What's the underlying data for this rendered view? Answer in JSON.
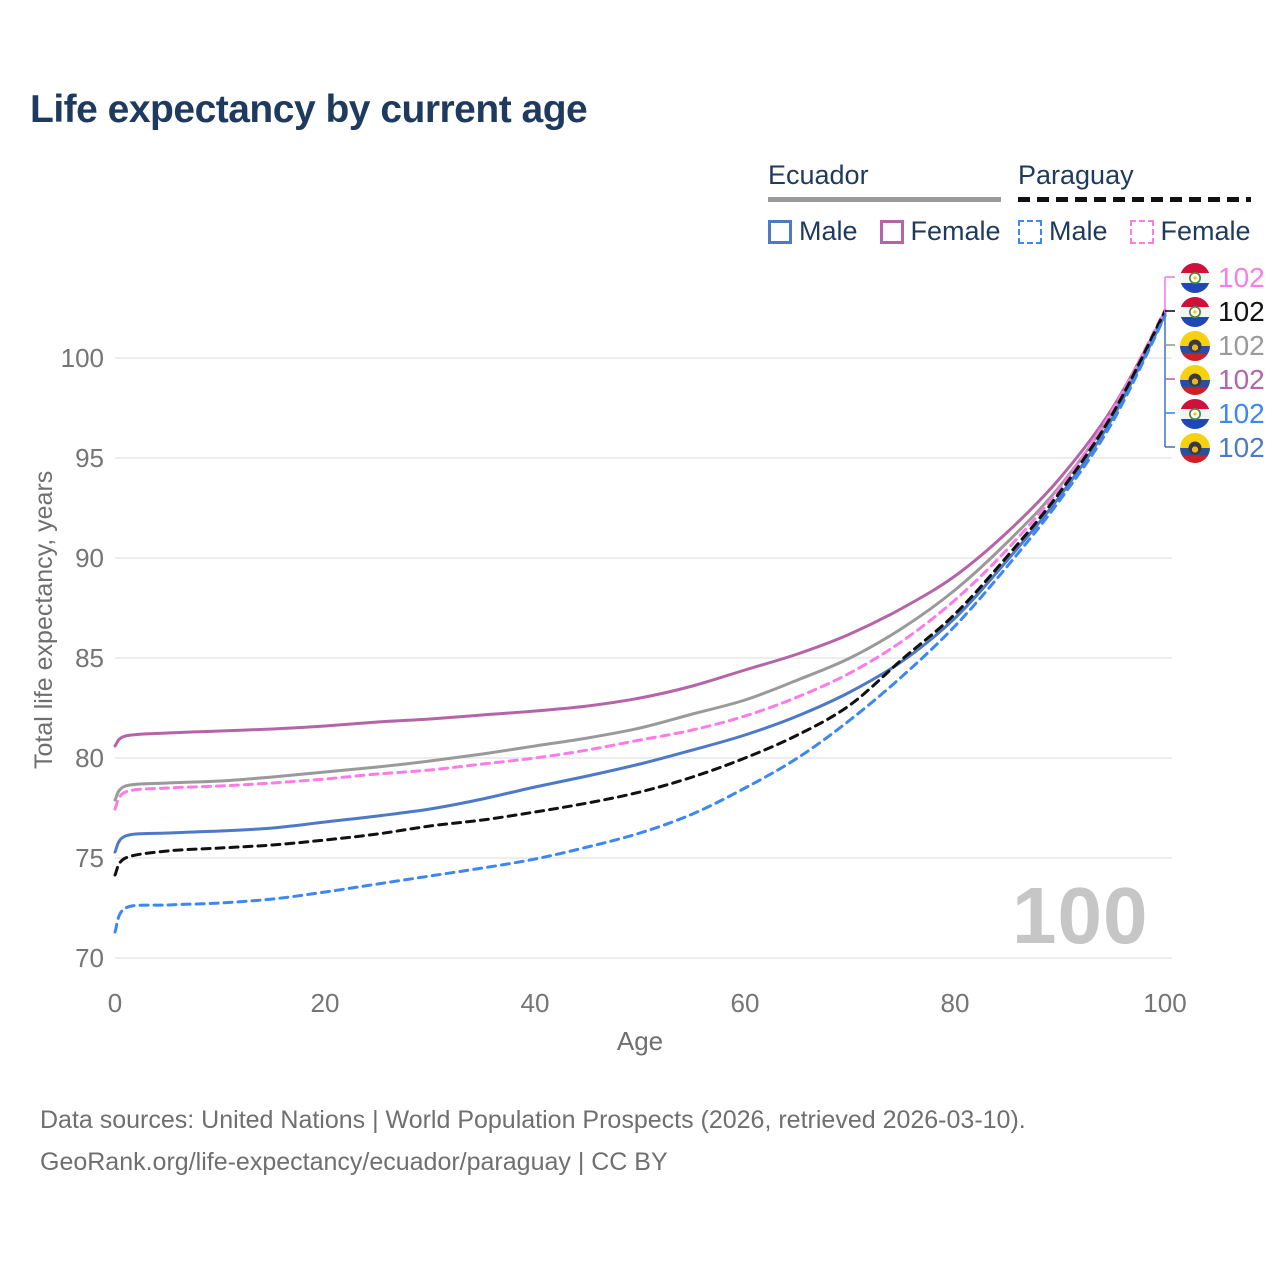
{
  "title": "Life expectancy by current age",
  "watermark": "100",
  "footer": {
    "line1": "Data sources: United Nations | World Population Prospects (2026, retrieved 2026-03-10).",
    "line2": "GeoRank.org/life-expectancy/ecuador/paraguay | CC BY"
  },
  "legend": {
    "groups": [
      {
        "country": "Ecuador",
        "line_style": "solid",
        "underline_color": "#9a9a9a",
        "items": [
          {
            "label": "Male",
            "color": "#4d79c7"
          },
          {
            "label": "Female",
            "color": "#b565a7"
          }
        ]
      },
      {
        "country": "Paraguay",
        "line_style": "dashed",
        "underline_color": "#111111",
        "items": [
          {
            "label": "Male",
            "color": "#3d87f5"
          },
          {
            "label": "Female",
            "color": "#fb7ce8"
          }
        ]
      }
    ]
  },
  "chart_data": {
    "type": "line",
    "title": "Life expectancy by current age",
    "xlabel": "Age",
    "ylabel": "Total life expectancy, years",
    "xlim": [
      0,
      100
    ],
    "ylim": [
      70,
      103
    ],
    "x_ticks": [
      0,
      20,
      40,
      60,
      80,
      100
    ],
    "y_ticks": [
      70,
      75,
      80,
      85,
      90,
      95,
      100
    ],
    "grid": true,
    "legend_position": "top-right",
    "ages": [
      0,
      1,
      5,
      10,
      15,
      20,
      25,
      30,
      35,
      40,
      45,
      50,
      55,
      60,
      65,
      70,
      75,
      80,
      85,
      90,
      95,
      100
    ],
    "series": [
      {
        "name": "Ecuador Female",
        "country": "ec",
        "dash": "solid",
        "color": "#b565a7",
        "values": [
          80.6,
          81.1,
          81.25,
          81.35,
          81.45,
          81.6,
          81.8,
          81.95,
          82.15,
          82.35,
          82.6,
          83.0,
          83.6,
          84.4,
          85.2,
          86.2,
          87.5,
          89.1,
          91.3,
          94.0,
          97.5,
          102.25
        ],
        "end_label": "102"
      },
      {
        "name": "Ecuador",
        "country": "ec",
        "dash": "solid",
        "color": "#9a9a9a",
        "values": [
          77.9,
          78.6,
          78.75,
          78.85,
          79.05,
          79.3,
          79.55,
          79.85,
          80.2,
          80.6,
          81.0,
          81.5,
          82.2,
          82.9,
          83.9,
          85.0,
          86.5,
          88.4,
          90.8,
          93.6,
          97.3,
          102.3
        ],
        "end_label": "102"
      },
      {
        "name": "Ecuador Male",
        "country": "ec",
        "dash": "solid",
        "color": "#4d79c7",
        "values": [
          75.3,
          76.1,
          76.25,
          76.35,
          76.5,
          76.8,
          77.1,
          77.45,
          77.95,
          78.55,
          79.1,
          79.7,
          80.4,
          81.15,
          82.1,
          83.3,
          84.85,
          87.0,
          89.9,
          93.1,
          97.0,
          102.15
        ],
        "end_label": "102"
      },
      {
        "name": "Paraguay Female",
        "country": "py",
        "dash": "dashed",
        "color": "#fb7ce8",
        "values": [
          77.45,
          78.3,
          78.5,
          78.6,
          78.75,
          78.95,
          79.2,
          79.4,
          79.7,
          80.0,
          80.4,
          80.9,
          81.4,
          82.1,
          83.05,
          84.25,
          85.85,
          87.9,
          90.45,
          93.5,
          97.4,
          102.4
        ],
        "end_label": "102"
      },
      {
        "name": "Paraguay",
        "country": "py",
        "dash": "dashed",
        "color": "#111111",
        "values": [
          74.15,
          75.0,
          75.35,
          75.5,
          75.65,
          75.9,
          76.2,
          76.6,
          76.9,
          77.3,
          77.75,
          78.3,
          79.05,
          80.0,
          81.15,
          82.65,
          84.95,
          87.2,
          90.1,
          93.3,
          97.2,
          102.35
        ],
        "end_label": "102"
      },
      {
        "name": "Paraguay Male",
        "country": "py",
        "dash": "dashed",
        "color": "#3d87f5",
        "values": [
          71.3,
          72.5,
          72.65,
          72.75,
          72.95,
          73.3,
          73.7,
          74.1,
          74.5,
          74.95,
          75.55,
          76.25,
          77.2,
          78.5,
          80.0,
          81.9,
          84.1,
          86.6,
          89.6,
          92.9,
          96.8,
          102.1
        ],
        "end_label": "102"
      }
    ],
    "end_label_rows": [
      "Paraguay Female",
      "Paraguay",
      "Ecuador",
      "Ecuador Female",
      "Paraguay Male",
      "Ecuador Male"
    ]
  }
}
